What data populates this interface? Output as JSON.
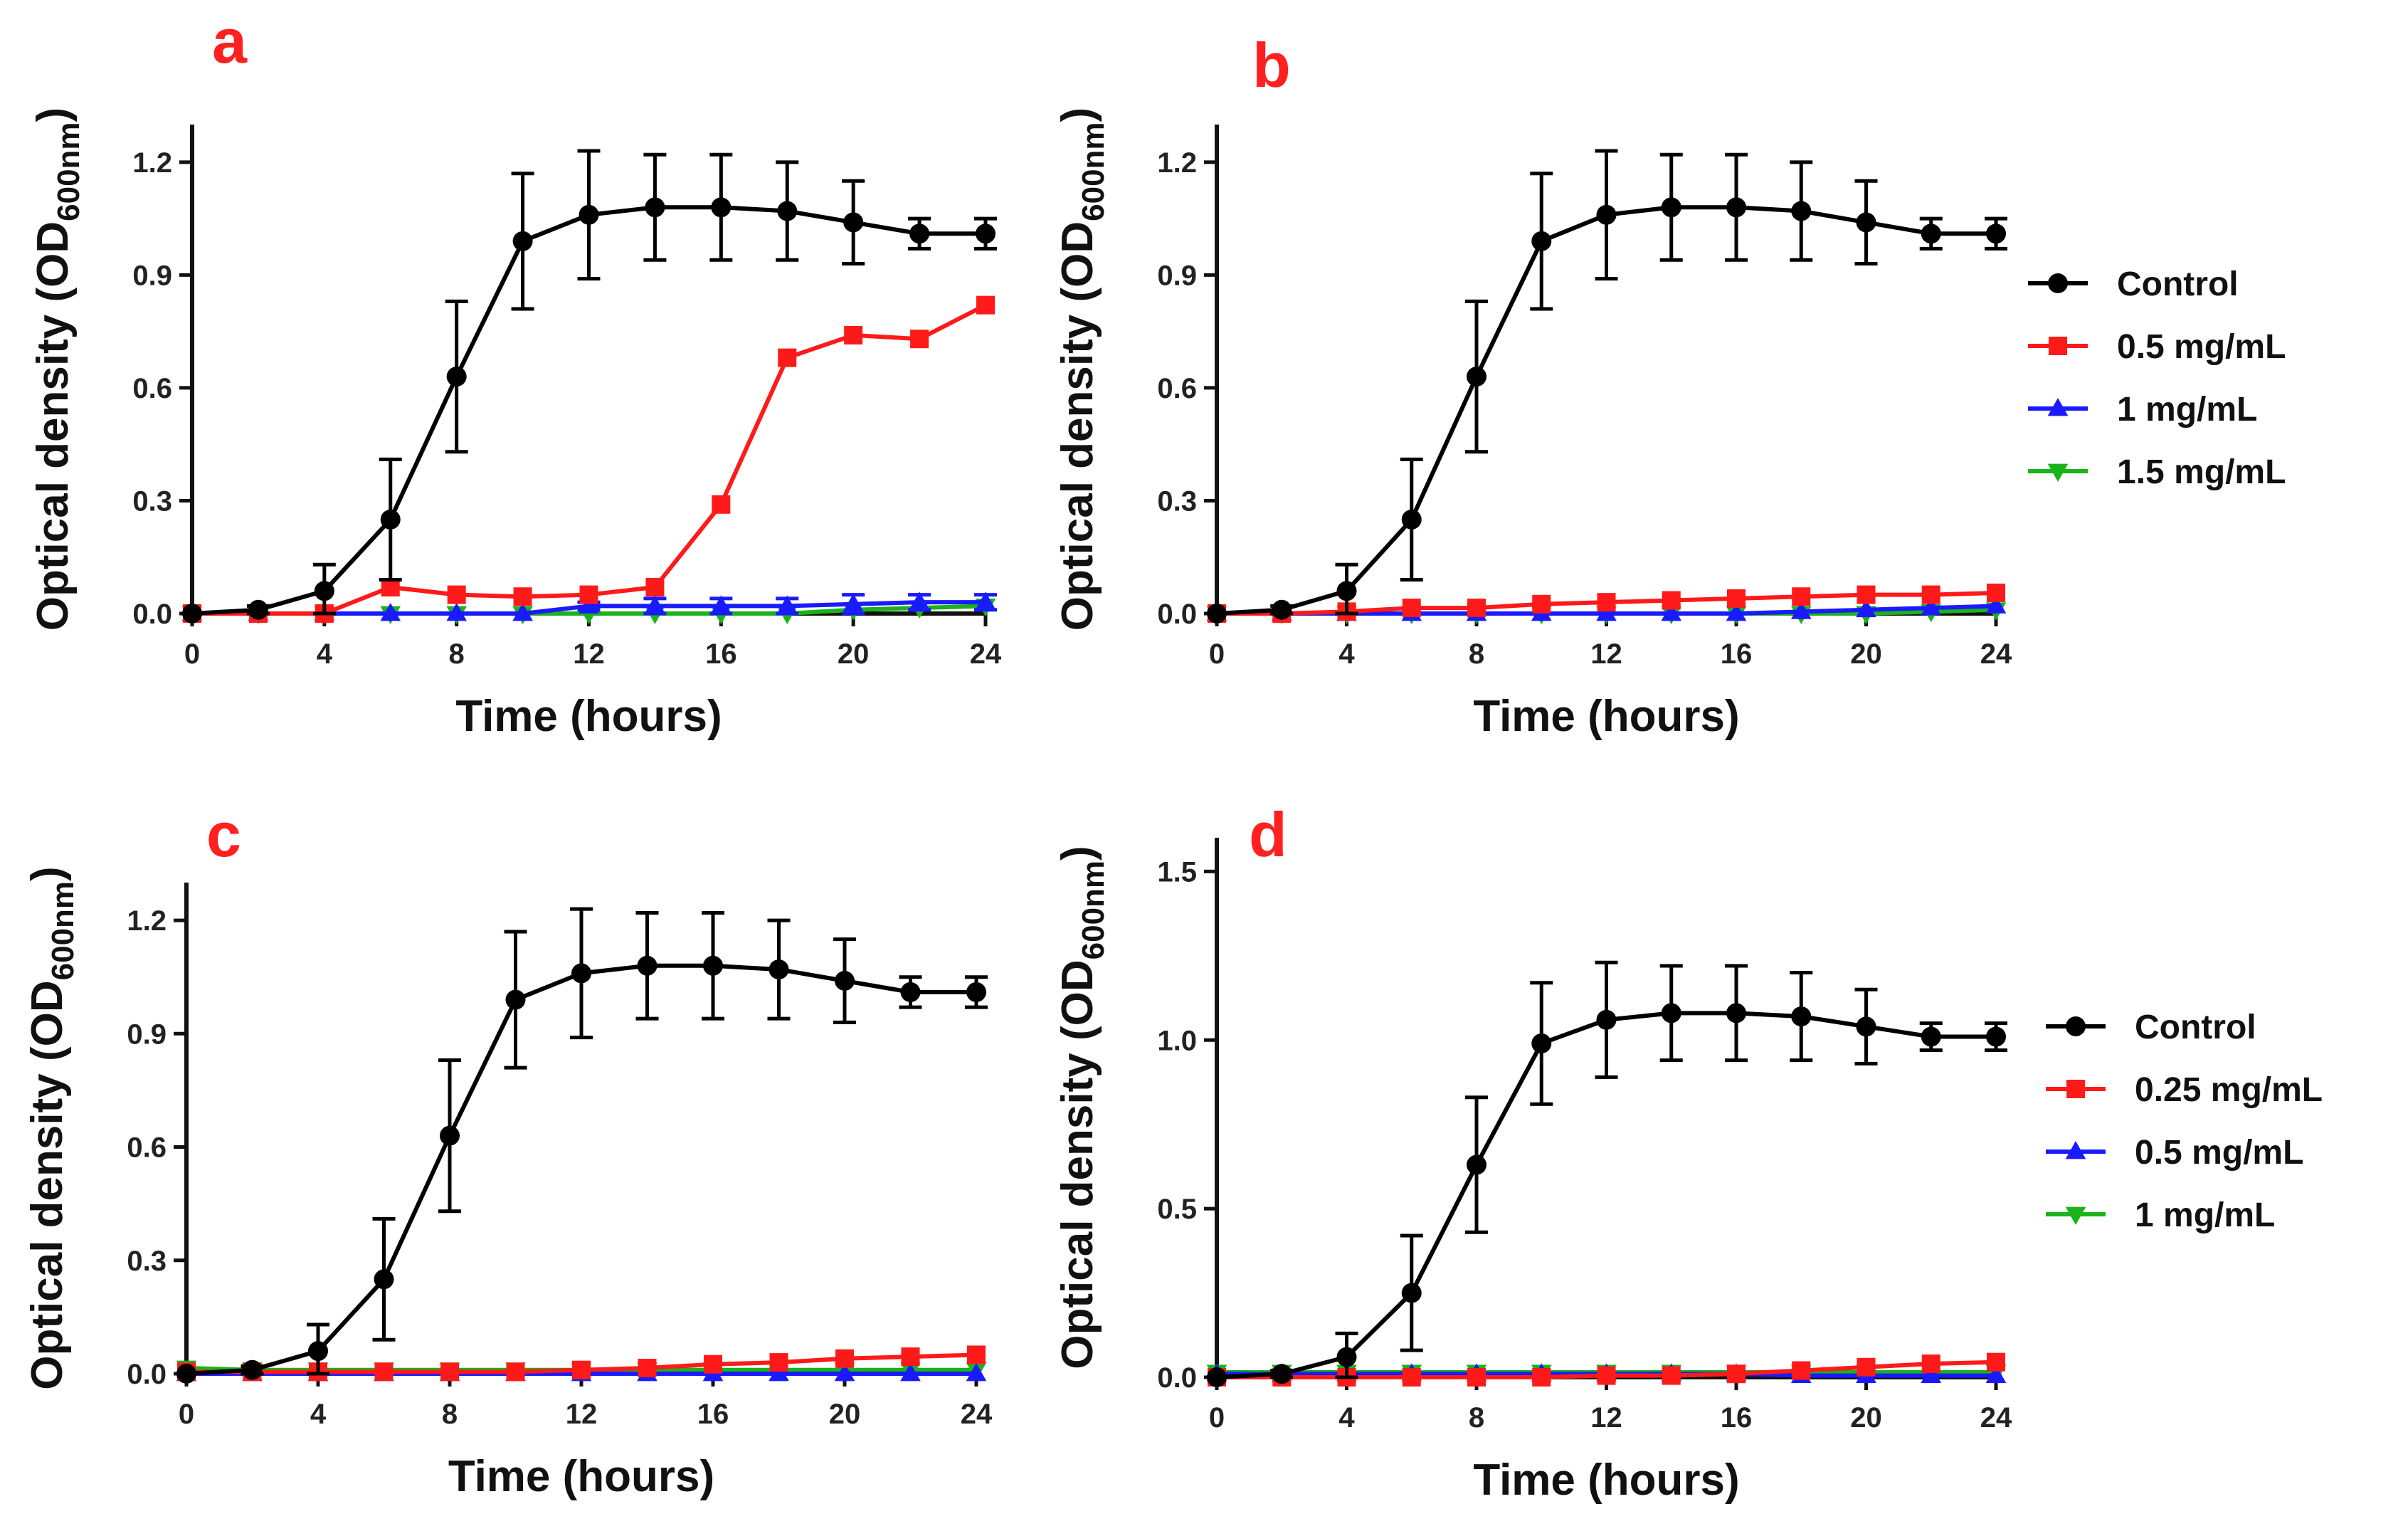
{
  "chart_data": [
    {
      "type": "line",
      "panel": "a",
      "xlabel": "Time (hours)",
      "ylabel": "Optical density (OD",
      "ylabel_sub": "600nm",
      "ylabel_close": ")",
      "xlim": [
        0,
        24
      ],
      "ylim": [
        0,
        1.3
      ],
      "xticks": [
        0,
        4,
        8,
        12,
        16,
        20,
        24
      ],
      "xtick_labels": [
        "0",
        "4",
        "8",
        "12",
        "16",
        "20",
        "24"
      ],
      "yticks": [
        0,
        0.3,
        0.6,
        0.9,
        1.2
      ],
      "ytick_labels": [
        "0.0",
        "0.3",
        "0.6",
        "0.9",
        "1.2"
      ],
      "x": [
        0,
        2,
        4,
        6,
        8,
        10,
        12,
        14,
        16,
        18,
        20,
        22,
        24
      ],
      "series": [
        {
          "name": "Control",
          "color": "#000000",
          "marker": "circle",
          "values": [
            0.0,
            0.01,
            0.06,
            0.25,
            0.63,
            0.99,
            1.06,
            1.08,
            1.08,
            1.07,
            1.04,
            1.01,
            1.01
          ],
          "errors": [
            0.0,
            0.01,
            0.07,
            0.16,
            0.2,
            0.18,
            0.17,
            0.14,
            0.14,
            0.13,
            0.11,
            0.04,
            0.04
          ]
        },
        {
          "name": "0.5 mg/mL",
          "color": "#ff1a1a",
          "marker": "square",
          "values": [
            0.0,
            0.0,
            0.0,
            0.07,
            0.05,
            0.045,
            0.05,
            0.07,
            0.29,
            0.68,
            0.74,
            0.73,
            0.82
          ]
        },
        {
          "name": "1 mg/mL",
          "color": "#1a1aff",
          "marker": "triangle-up",
          "values": [
            0.0,
            0.0,
            0.0,
            0.0,
            0.0,
            0.0,
            0.02,
            0.02,
            0.02,
            0.02,
            0.025,
            0.03,
            0.03
          ],
          "errors": [
            0,
            0,
            0,
            0,
            0,
            0,
            0.01,
            0.02,
            0.02,
            0.02,
            0.025,
            0.02,
            0.02
          ]
        },
        {
          "name": "1.5 mg/mL",
          "color": "#1ab31a",
          "marker": "triangle-down",
          "values": [
            0.0,
            0.0,
            0.0,
            0.0,
            0.0,
            0.0,
            0.0,
            0.0,
            0.0,
            0.0,
            0.01,
            0.015,
            0.02
          ]
        }
      ],
      "legend": [
        "Control",
        "0.5 mg/mL",
        "1 mg/mL",
        "1.5 mg/mL"
      ]
    },
    {
      "type": "line",
      "panel": "b",
      "xlabel": "Time (hours)",
      "ylabel": "Optical density (OD",
      "ylabel_sub": "600nm",
      "ylabel_close": ")",
      "xlim": [
        0,
        24
      ],
      "ylim": [
        0,
        1.3
      ],
      "xticks": [
        0,
        4,
        8,
        12,
        16,
        20,
        24
      ],
      "xtick_labels": [
        "0",
        "4",
        "8",
        "12",
        "16",
        "20",
        "24"
      ],
      "yticks": [
        0,
        0.3,
        0.6,
        0.9,
        1.2
      ],
      "ytick_labels": [
        "0.0",
        "0.3",
        "0.6",
        "0.9",
        "1.2"
      ],
      "x": [
        0,
        2,
        4,
        6,
        8,
        10,
        12,
        14,
        16,
        18,
        20,
        22,
        24
      ],
      "series": [
        {
          "name": "Control",
          "color": "#000000",
          "marker": "circle",
          "values": [
            0.0,
            0.01,
            0.06,
            0.25,
            0.63,
            0.99,
            1.06,
            1.08,
            1.08,
            1.07,
            1.04,
            1.01,
            1.01
          ],
          "errors": [
            0.0,
            0.01,
            0.07,
            0.16,
            0.2,
            0.18,
            0.17,
            0.14,
            0.14,
            0.13,
            0.11,
            0.04,
            0.04
          ]
        },
        {
          "name": "0.5 mg/mL",
          "color": "#ff1a1a",
          "marker": "square",
          "values": [
            0.0,
            0.0,
            0.005,
            0.015,
            0.015,
            0.025,
            0.03,
            0.035,
            0.04,
            0.045,
            0.05,
            0.05,
            0.055
          ]
        },
        {
          "name": "1 mg/mL",
          "color": "#1a1aff",
          "marker": "triangle-up",
          "values": [
            0.0,
            0.0,
            0.0,
            0.0,
            0.0,
            0.0,
            0.0,
            0.0,
            0.0,
            0.005,
            0.01,
            0.015,
            0.02
          ]
        },
        {
          "name": "1.5 mg/mL",
          "color": "#1ab31a",
          "marker": "triangle-down",
          "values": [
            0.0,
            0.0,
            0.0,
            0.0,
            0.0,
            0.0,
            0.0,
            0.0,
            0.0,
            0.0,
            0.0,
            0.005,
            0.01
          ]
        }
      ],
      "legend": [
        "Control",
        "0.5 mg/mL",
        "1 mg/mL",
        "1.5 mg/mL"
      ]
    },
    {
      "type": "line",
      "panel": "c",
      "xlabel": "Time (hours)",
      "ylabel": "Optical density (OD",
      "ylabel_sub": "600nm",
      "ylabel_close": ")",
      "xlim": [
        0,
        24
      ],
      "ylim": [
        0,
        1.3
      ],
      "xticks": [
        0,
        4,
        8,
        12,
        16,
        20,
        24
      ],
      "xtick_labels": [
        "0",
        "4",
        "8",
        "12",
        "16",
        "20",
        "24"
      ],
      "yticks": [
        0,
        0.3,
        0.6,
        0.9,
        1.2
      ],
      "ytick_labels": [
        "0.0",
        "0.3",
        "0.6",
        "0.9",
        "1.2"
      ],
      "x": [
        0,
        2,
        4,
        6,
        8,
        10,
        12,
        14,
        16,
        18,
        20,
        22,
        24
      ],
      "series": [
        {
          "name": "Control",
          "color": "#000000",
          "marker": "circle",
          "values": [
            0.0,
            0.01,
            0.06,
            0.25,
            0.63,
            0.99,
            1.06,
            1.08,
            1.08,
            1.07,
            1.04,
            1.01,
            1.01
          ],
          "errors": [
            0.0,
            0.01,
            0.07,
            0.16,
            0.2,
            0.18,
            0.17,
            0.14,
            0.14,
            0.13,
            0.11,
            0.04,
            0.04
          ]
        },
        {
          "name": "0.25 mg/mL",
          "color": "#ff1a1a",
          "marker": "square",
          "values": [
            0.005,
            0.005,
            0.005,
            0.005,
            0.005,
            0.005,
            0.01,
            0.015,
            0.025,
            0.03,
            0.04,
            0.045,
            0.05
          ]
        },
        {
          "name": "0.5 mg/mL",
          "color": "#1a1aff",
          "marker": "triangle-up",
          "values": [
            0.0,
            0.0,
            0.0,
            0.0,
            0.0,
            0.0,
            0.0,
            0.0,
            0.0,
            0.0,
            0.0,
            0.0,
            0.0
          ]
        },
        {
          "name": "1 mg/mL",
          "color": "#1ab31a",
          "marker": "triangle-down",
          "values": [
            0.015,
            0.01,
            0.01,
            0.01,
            0.01,
            0.01,
            0.01,
            0.01,
            0.01,
            0.01,
            0.01,
            0.01,
            0.01
          ]
        }
      ],
      "legend": [
        "Control",
        "0.25 mg/mL",
        "0.5 mg/mL",
        "1 mg/mL"
      ]
    },
    {
      "type": "line",
      "panel": "d",
      "xlabel": "Time (hours)",
      "ylabel": "Optical density (OD",
      "ylabel_sub": "600nm",
      "ylabel_close": ")",
      "xlim": [
        0,
        24
      ],
      "ylim": [
        0,
        1.6
      ],
      "xticks": [
        0,
        4,
        8,
        12,
        16,
        20,
        24
      ],
      "xtick_labels": [
        "0",
        "4",
        "8",
        "12",
        "16",
        "20",
        "24"
      ],
      "yticks": [
        0,
        0.5,
        1.0,
        1.5
      ],
      "ytick_labels": [
        "0.0",
        "0.5",
        "1.0",
        "1.5"
      ],
      "x": [
        0,
        2,
        4,
        6,
        8,
        10,
        12,
        14,
        16,
        18,
        20,
        22,
        24
      ],
      "series": [
        {
          "name": "Control",
          "color": "#000000",
          "marker": "circle",
          "values": [
            0.0,
            0.01,
            0.06,
            0.25,
            0.63,
            0.99,
            1.06,
            1.08,
            1.08,
            1.07,
            1.04,
            1.01,
            1.01
          ],
          "errors": [
            0.0,
            0.01,
            0.07,
            0.17,
            0.2,
            0.18,
            0.17,
            0.14,
            0.14,
            0.13,
            0.11,
            0.04,
            0.04
          ]
        },
        {
          "name": "0.25 mg/mL",
          "color": "#ff1a1a",
          "marker": "square",
          "values": [
            0.0,
            0.0,
            0.0,
            0.0,
            0.0,
            0.0,
            0.005,
            0.005,
            0.01,
            0.02,
            0.03,
            0.04,
            0.045
          ]
        },
        {
          "name": "0.5 mg/mL",
          "color": "#1a1aff",
          "marker": "triangle-up",
          "values": [
            0.01,
            0.01,
            0.01,
            0.01,
            0.01,
            0.01,
            0.01,
            0.01,
            0.01,
            0.005,
            0.005,
            0.005,
            0.005
          ]
        },
        {
          "name": "1 mg/mL",
          "color": "#1ab31a",
          "marker": "triangle-down",
          "values": [
            0.015,
            0.015,
            0.015,
            0.015,
            0.015,
            0.015,
            0.015,
            0.015,
            0.015,
            0.015,
            0.015,
            0.015,
            0.015
          ]
        }
      ],
      "legend": [
        "Control",
        "0.25 mg/mL",
        "0.5 mg/mL",
        "1 mg/mL"
      ]
    }
  ]
}
